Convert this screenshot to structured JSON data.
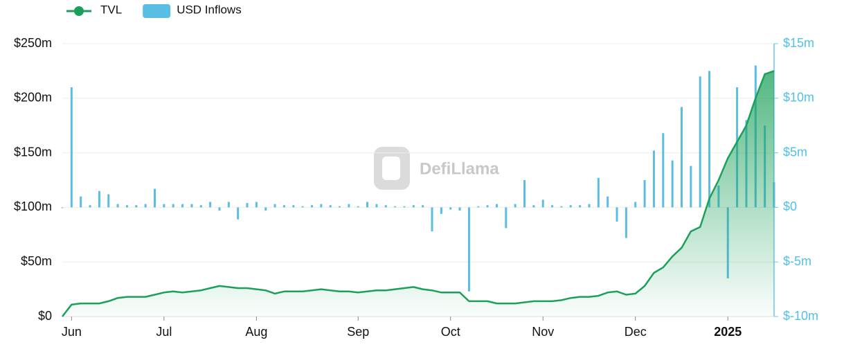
{
  "chart_data": {
    "type": "line-bar",
    "watermark": "DefiLlama",
    "categories": [
      null,
      "Jun",
      null,
      null,
      null,
      null,
      null,
      null,
      null,
      null,
      null,
      "Jul",
      null,
      null,
      null,
      null,
      null,
      null,
      null,
      null,
      null,
      "Aug",
      null,
      null,
      null,
      null,
      null,
      null,
      null,
      null,
      null,
      null,
      "Sep",
      null,
      null,
      null,
      null,
      null,
      null,
      null,
      null,
      null,
      "Oct",
      null,
      null,
      null,
      null,
      null,
      null,
      null,
      null,
      null,
      "Nov",
      null,
      null,
      null,
      null,
      null,
      null,
      null,
      null,
      null,
      "Dec",
      null,
      null,
      null,
      null,
      null,
      null,
      null,
      null,
      null,
      "2025",
      null,
      null,
      null,
      null,
      null
    ],
    "series": [
      {
        "name": "TVL",
        "color": "#1aa05a",
        "axis": "y",
        "values": [
          0,
          11,
          12,
          12,
          12,
          14,
          17,
          18,
          18,
          18,
          20,
          22,
          23,
          22,
          23,
          24,
          26,
          28,
          27,
          26,
          26,
          25,
          24,
          21,
          23,
          23,
          23,
          24,
          25,
          24,
          23,
          23,
          22,
          23,
          24,
          24,
          25,
          26,
          27,
          25,
          24,
          22,
          22,
          22,
          14,
          14,
          14,
          12,
          12,
          12,
          13,
          14,
          14,
          14,
          15,
          17,
          18,
          18,
          19,
          22,
          23,
          20,
          21,
          28,
          40,
          45,
          55,
          63,
          78,
          82,
          108,
          125,
          145,
          160,
          175,
          200,
          222,
          225
        ]
      },
      {
        "name": "USD Inflows",
        "color": "#5bbde3",
        "axis": "y2",
        "values": [
          0,
          11,
          1,
          0.2,
          1.5,
          1.2,
          0.3,
          0.2,
          0.2,
          0.3,
          1.7,
          0.3,
          0.3,
          0.3,
          0.3,
          0.2,
          0.5,
          -0.3,
          0.5,
          -1.1,
          0.4,
          0.5,
          -0.3,
          0.3,
          0.2,
          0.2,
          0.1,
          0.2,
          0.3,
          0.2,
          0.1,
          0.3,
          0.1,
          0.5,
          0.3,
          0.2,
          0.1,
          0.1,
          0.2,
          0.2,
          -2.2,
          -0.6,
          -0.2,
          -0.3,
          -7.7,
          0.1,
          0.2,
          0.3,
          -1.9,
          0.3,
          2.5,
          0.2,
          0.7,
          0.2,
          0.1,
          0.2,
          0.2,
          0.3,
          2.7,
          1.0,
          -1.3,
          -2.8,
          0.5,
          2.5,
          5.2,
          6.8,
          4.3,
          9.2,
          3.8,
          12.0,
          12.5,
          2.0,
          -6.5,
          11,
          8,
          13,
          7.5,
          2.3
        ]
      }
    ],
    "ylim": [
      0,
      250
    ],
    "yticks": [
      {
        "value": 0,
        "label": "$0"
      },
      {
        "value": 50,
        "label": "$50m"
      },
      {
        "value": 100,
        "label": "$100m"
      },
      {
        "value": 150,
        "label": "$150m"
      },
      {
        "value": 200,
        "label": "$200m"
      },
      {
        "value": 250,
        "label": "$250m"
      }
    ],
    "y2lim": [
      -10,
      15
    ],
    "y2ticks": [
      {
        "value": -10,
        "label": "$-10m"
      },
      {
        "value": -5,
        "label": "$-5m"
      },
      {
        "value": 0,
        "label": "$0"
      },
      {
        "value": 5,
        "label": "$5m"
      },
      {
        "value": 10,
        "label": "$10m"
      },
      {
        "value": 15,
        "label": "$15m"
      }
    ],
    "grid": true,
    "legend": "top-left"
  }
}
